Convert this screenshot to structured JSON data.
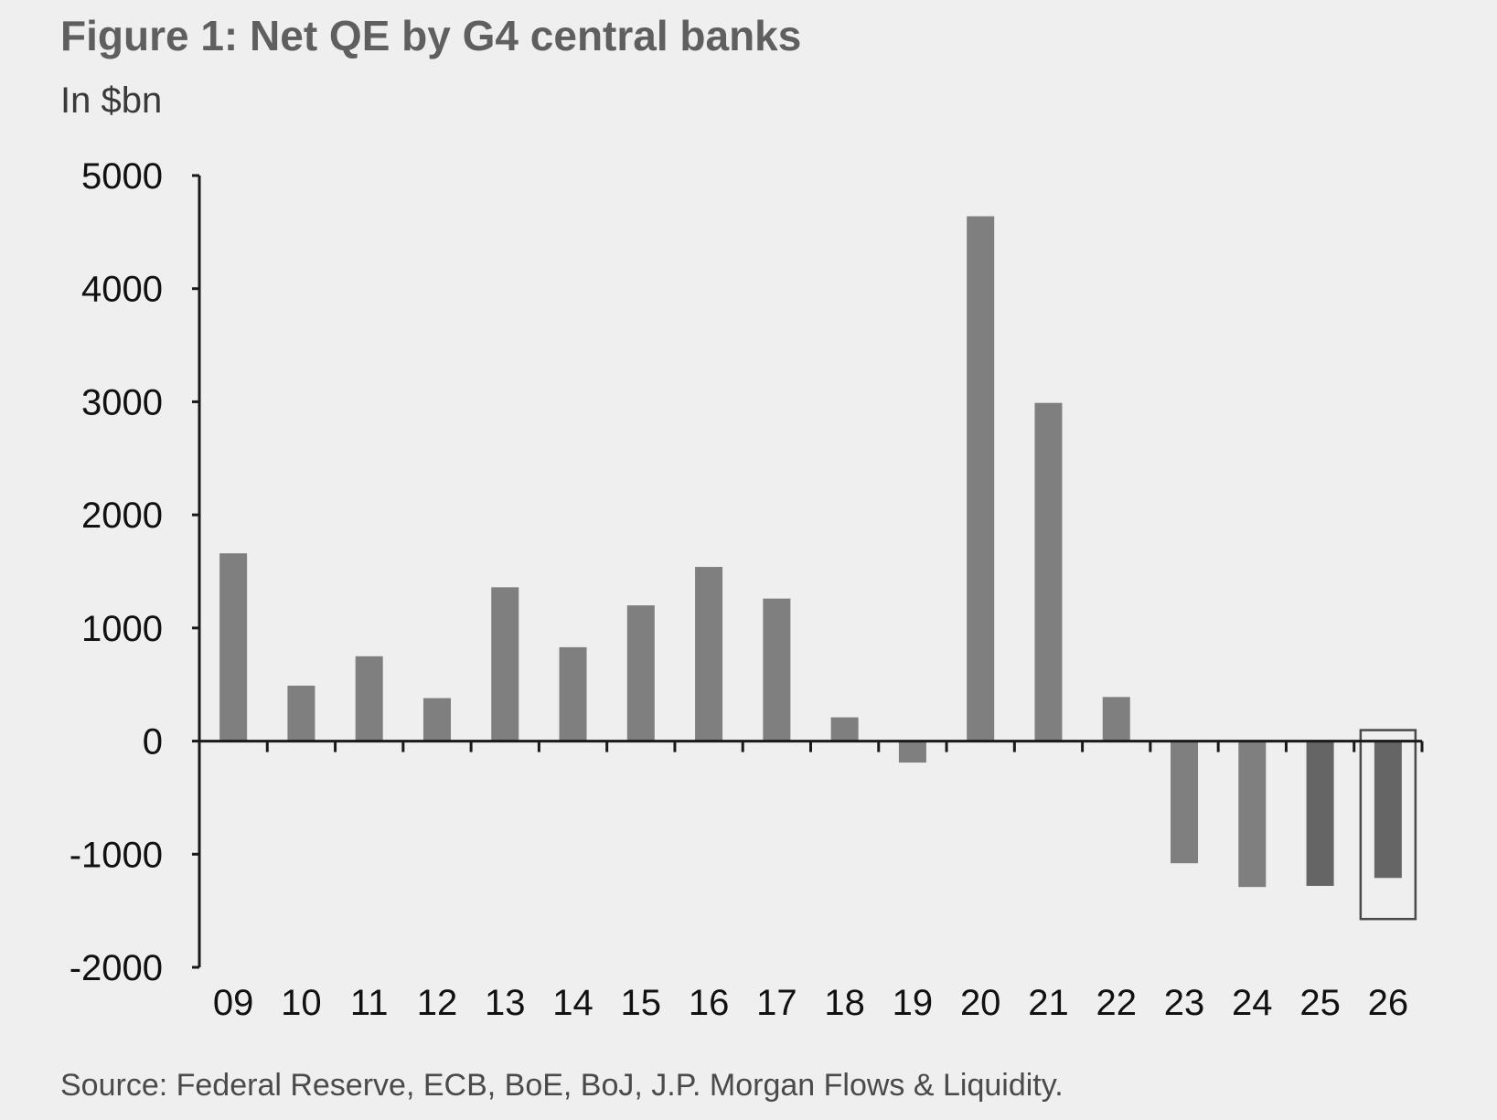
{
  "title": "Figure 1: Net QE by G4 central banks",
  "unit_label": "In $bn",
  "source": "Source: Federal Reserve, ECB, BoE, BoJ, J.P. Morgan Flows & Liquidity.",
  "colors": {
    "bar": "#7f7f7f",
    "bar_highlight": "#656565",
    "axis": "#1a1a1a",
    "text": "#111111",
    "background": "#efefef"
  },
  "chart_data": {
    "type": "bar",
    "title": "Figure 1: Net QE by G4 central banks",
    "ylabel": "In $bn",
    "xlabel": "",
    "ylim": [
      -2000,
      5000
    ],
    "yticks": [
      -2000,
      -1000,
      0,
      1000,
      2000,
      3000,
      4000,
      5000
    ],
    "categories": [
      "09",
      "10",
      "11",
      "12",
      "13",
      "14",
      "15",
      "16",
      "17",
      "18",
      "19",
      "20",
      "21",
      "22",
      "23",
      "24",
      "25",
      "26"
    ],
    "values": [
      1660,
      490,
      750,
      380,
      1360,
      830,
      1200,
      1540,
      1260,
      210,
      -190,
      4640,
      2990,
      390,
      -1080,
      -1290,
      -1280,
      -1210
    ],
    "highlighted_category": "26",
    "grid": false,
    "legend": "none"
  }
}
